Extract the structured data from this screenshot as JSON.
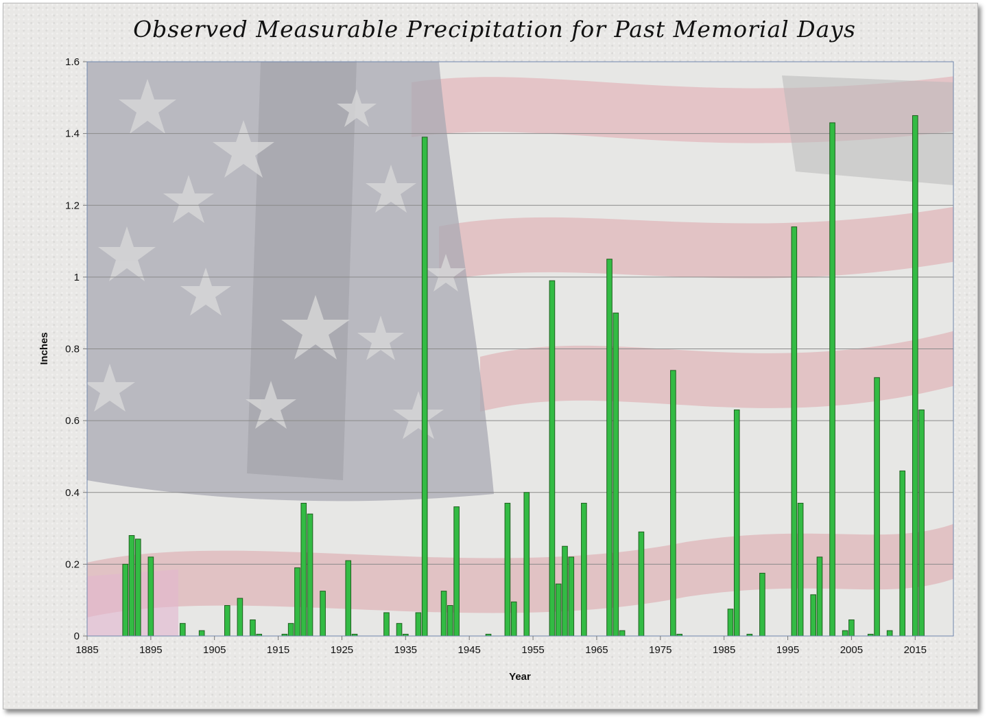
{
  "chart_data": {
    "type": "bar",
    "title": "Observed Measurable Precipitation for Past Memorial Days",
    "xlabel": "Year",
    "ylabel": "Inches",
    "xlim": [
      1885,
      2021
    ],
    "ylim": [
      0,
      1.6
    ],
    "x_ticks": [
      1885,
      1895,
      1905,
      1915,
      1925,
      1935,
      1945,
      1955,
      1965,
      1975,
      1985,
      1995,
      2005,
      2015
    ],
    "x_tick_labels": [
      "1885",
      "1895",
      "1905",
      "1915",
      "1925",
      "1935",
      "1945",
      "1955",
      "1965",
      "1975",
      "1985",
      "1995",
      "2005",
      "2015"
    ],
    "y_ticks": [
      0,
      0.2,
      0.4,
      0.6,
      0.8,
      1.0,
      1.2,
      1.4,
      1.6
    ],
    "y_tick_labels": [
      "0",
      "0.2",
      "0.4",
      "0.6",
      "0.8",
      "1",
      "1.2",
      "1.4",
      "1.6"
    ],
    "grid": "horizontal",
    "legend": "none",
    "bar_color": "#33bb44",
    "bar_edge_color": "#1e5e1e",
    "points": [
      {
        "x": 1891,
        "y": 0.2
      },
      {
        "x": 1892,
        "y": 0.28
      },
      {
        "x": 1893,
        "y": 0.27
      },
      {
        "x": 1895,
        "y": 0.22
      },
      {
        "x": 1900,
        "y": 0.035
      },
      {
        "x": 1903,
        "y": 0.015
      },
      {
        "x": 1907,
        "y": 0.085
      },
      {
        "x": 1909,
        "y": 0.105
      },
      {
        "x": 1911,
        "y": 0.045
      },
      {
        "x": 1912,
        "y": 0.005
      },
      {
        "x": 1916,
        "y": 0.005
      },
      {
        "x": 1917,
        "y": 0.035
      },
      {
        "x": 1918,
        "y": 0.19
      },
      {
        "x": 1919,
        "y": 0.37
      },
      {
        "x": 1920,
        "y": 0.34
      },
      {
        "x": 1922,
        "y": 0.125
      },
      {
        "x": 1926,
        "y": 0.21
      },
      {
        "x": 1927,
        "y": 0.005
      },
      {
        "x": 1932,
        "y": 0.065
      },
      {
        "x": 1934,
        "y": 0.035
      },
      {
        "x": 1935,
        "y": 0.005
      },
      {
        "x": 1937,
        "y": 0.065
      },
      {
        "x": 1938,
        "y": 1.39
      },
      {
        "x": 1941,
        "y": 0.125
      },
      {
        "x": 1942,
        "y": 0.085
      },
      {
        "x": 1943,
        "y": 0.36
      },
      {
        "x": 1948,
        "y": 0.005
      },
      {
        "x": 1951,
        "y": 0.37
      },
      {
        "x": 1952,
        "y": 0.095
      },
      {
        "x": 1954,
        "y": 0.4
      },
      {
        "x": 1958,
        "y": 0.99
      },
      {
        "x": 1959,
        "y": 0.145
      },
      {
        "x": 1960,
        "y": 0.25
      },
      {
        "x": 1961,
        "y": 0.22
      },
      {
        "x": 1963,
        "y": 0.37
      },
      {
        "x": 1967,
        "y": 1.05
      },
      {
        "x": 1968,
        "y": 0.9
      },
      {
        "x": 1969,
        "y": 0.015
      },
      {
        "x": 1972,
        "y": 0.29
      },
      {
        "x": 1977,
        "y": 0.74
      },
      {
        "x": 1978,
        "y": 0.005
      },
      {
        "x": 1986,
        "y": 0.075
      },
      {
        "x": 1987,
        "y": 0.63
      },
      {
        "x": 1989,
        "y": 0.005
      },
      {
        "x": 1991,
        "y": 0.175
      },
      {
        "x": 1996,
        "y": 1.14
      },
      {
        "x": 1997,
        "y": 0.37
      },
      {
        "x": 1999,
        "y": 0.115
      },
      {
        "x": 2000,
        "y": 0.22
      },
      {
        "x": 2002,
        "y": 1.43
      },
      {
        "x": 2004,
        "y": 0.015
      },
      {
        "x": 2005,
        "y": 0.045
      },
      {
        "x": 2008,
        "y": 0.005
      },
      {
        "x": 2009,
        "y": 0.72
      },
      {
        "x": 2011,
        "y": 0.015
      },
      {
        "x": 2013,
        "y": 0.46
      },
      {
        "x": 2015,
        "y": 1.45
      },
      {
        "x": 2016,
        "y": 0.63
      }
    ]
  }
}
